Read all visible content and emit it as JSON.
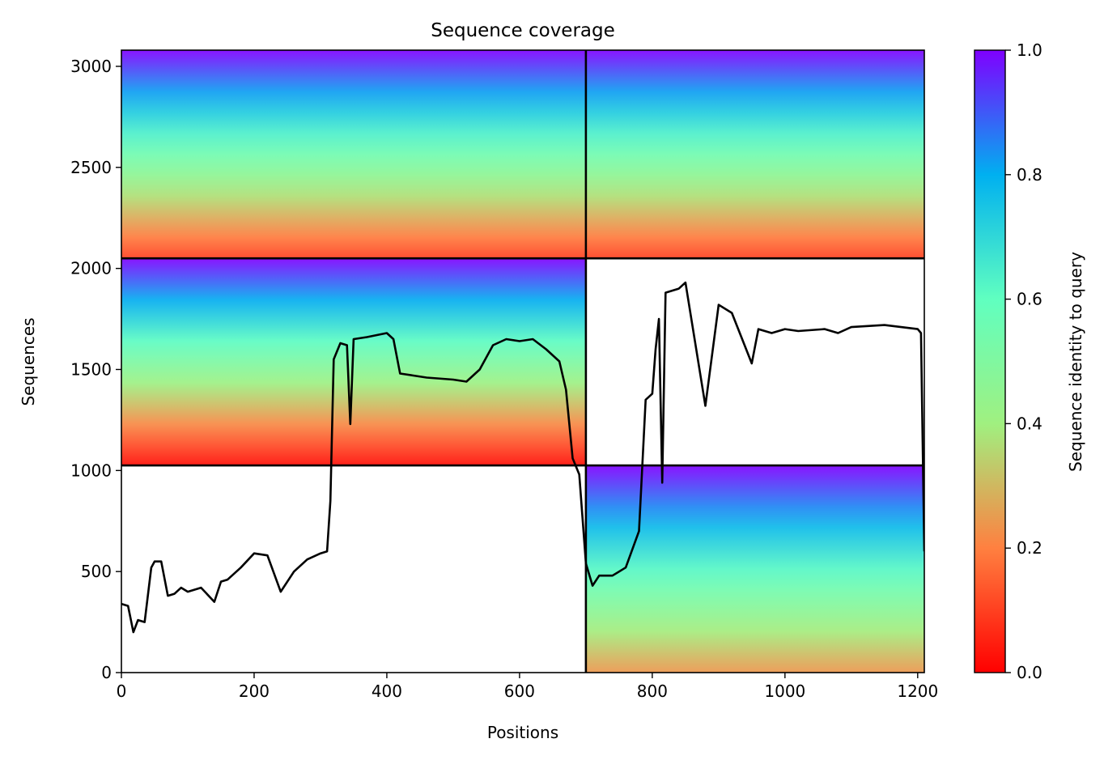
{
  "chart_data": {
    "type": "heatmap",
    "title": "Sequence coverage",
    "xlabel": "Positions",
    "ylabel": "Sequences",
    "xlim": [
      0,
      1210
    ],
    "ylim": [
      0,
      3080
    ],
    "xticks": [
      0,
      200,
      400,
      600,
      800,
      1000,
      1200
    ],
    "yticks": [
      0,
      500,
      1000,
      1500,
      2000,
      2500,
      3000
    ],
    "colorbar": {
      "label": "Sequence identity to query",
      "range": [
        0.0,
        1.0
      ],
      "ticks": [
        "0.0",
        "0.2",
        "0.4",
        "0.6",
        "0.8",
        "1.0"
      ],
      "colormap": "rainbow_r"
    },
    "chain_boundaries": {
      "x": [
        700
      ],
      "y": [
        1025,
        2050
      ]
    },
    "blocks": [
      {
        "x0": 0,
        "x1": 700,
        "y0": 2050,
        "y1": 3080,
        "identity_top": 1.0,
        "identity_bottom": 0.1
      },
      {
        "x0": 700,
        "x1": 1210,
        "y0": 2050,
        "y1": 3080,
        "identity_top": 1.0,
        "identity_bottom": 0.1
      },
      {
        "x0": 0,
        "x1": 700,
        "y0": 1025,
        "y1": 2050,
        "identity_top": 1.0,
        "identity_bottom": 0.02
      },
      {
        "x0": 700,
        "x1": 1210,
        "y0": 0,
        "y1": 1025,
        "identity_top": 1.0,
        "identity_bottom": 0.24
      }
    ],
    "coverage_line": {
      "x": [
        0,
        10,
        18,
        25,
        35,
        45,
        50,
        60,
        70,
        80,
        90,
        100,
        120,
        140,
        150,
        160,
        180,
        200,
        220,
        240,
        260,
        280,
        300,
        310,
        315,
        320,
        330,
        340,
        345,
        350,
        370,
        400,
        410,
        420,
        440,
        460,
        500,
        520,
        540,
        560,
        580,
        600,
        620,
        640,
        660,
        670,
        680,
        690,
        700,
        710,
        720,
        740,
        760,
        780,
        790,
        800,
        805,
        810,
        815,
        820,
        840,
        850,
        880,
        900,
        920,
        950,
        960,
        980,
        1000,
        1020,
        1060,
        1080,
        1100,
        1150,
        1200,
        1205,
        1210
      ],
      "y": [
        340,
        330,
        200,
        260,
        250,
        520,
        550,
        550,
        380,
        390,
        420,
        400,
        420,
        350,
        450,
        460,
        520,
        590,
        580,
        400,
        500,
        560,
        590,
        600,
        850,
        1550,
        1630,
        1620,
        1230,
        1650,
        1660,
        1680,
        1650,
        1480,
        1470,
        1460,
        1450,
        1440,
        1500,
        1620,
        1650,
        1640,
        1650,
        1600,
        1540,
        1400,
        1060,
        980,
        540,
        430,
        480,
        480,
        520,
        700,
        1350,
        1380,
        1600,
        1750,
        940,
        1880,
        1900,
        1930,
        1320,
        1820,
        1780,
        1530,
        1700,
        1680,
        1700,
        1690,
        1700,
        1680,
        1710,
        1720,
        1700,
        1680,
        600
      ]
    }
  }
}
